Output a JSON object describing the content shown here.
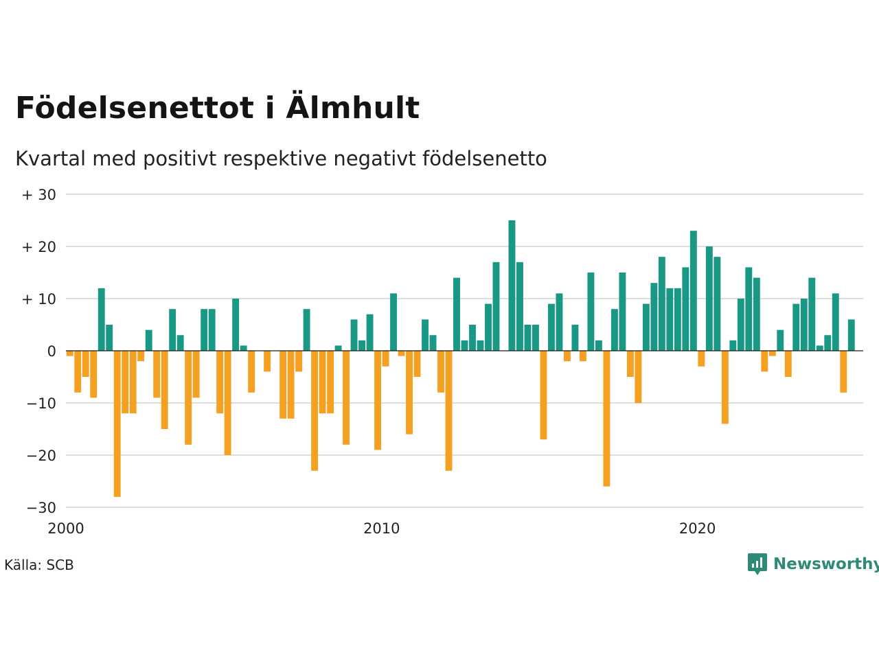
{
  "title": "Födelsenettot i Älmhult",
  "subtitle": "Kvartal med positivt respektive negativt födelsenetto",
  "source": "Källa: SCB",
  "brand": "Newsworthy",
  "colors": {
    "positive": "#1a9886",
    "negative": "#f5a020",
    "grid": "#dddddd",
    "brand": "#2e8a78"
  },
  "chart_data": {
    "type": "bar",
    "ylim": [
      -30,
      30
    ],
    "yticks": [
      30,
      20,
      10,
      0,
      -10,
      -20,
      -30
    ],
    "ytick_labels": [
      "+ 30",
      "+ 20",
      "+ 10",
      "0",
      "−10",
      "−20",
      "−30"
    ],
    "xticks": [
      2000,
      2010,
      2020
    ],
    "xtick_labels": [
      "2000",
      "2010",
      "2020"
    ],
    "xlim": [
      2000,
      2025.25
    ],
    "grid": true,
    "start_year": 2000,
    "values": [
      -1,
      -8,
      -5,
      -9,
      12,
      5,
      -28,
      -12,
      -12,
      -2,
      4,
      -9,
      -15,
      8,
      3,
      -18,
      -9,
      8,
      8,
      -12,
      -20,
      10,
      1,
      -8,
      0,
      -4,
      0,
      -13,
      -13,
      -4,
      8,
      -23,
      -12,
      -12,
      1,
      -18,
      6,
      2,
      7,
      -19,
      -3,
      11,
      -1,
      -16,
      -5,
      6,
      3,
      -8,
      -23,
      14,
      2,
      5,
      2,
      9,
      17,
      0,
      25,
      17,
      5,
      5,
      -17,
      9,
      11,
      -2,
      5,
      -2,
      15,
      2,
      -26,
      8,
      15,
      -5,
      -10,
      9,
      13,
      18,
      12,
      12,
      16,
      23,
      -3,
      20,
      18,
      -14,
      2,
      10,
      16,
      14,
      -4,
      -1,
      4,
      -5,
      9,
      10,
      14,
      1,
      3,
      11,
      -8,
      6
    ]
  }
}
